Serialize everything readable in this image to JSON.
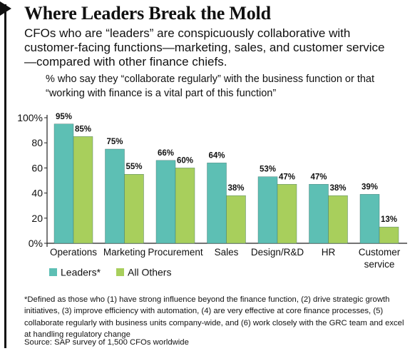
{
  "title": "Where Leaders Break the Mold",
  "subtitle": "CFOs who are “leaders” are conspicuously collaborative with customer-facing functions—marketing, sales, and customer service—compared with other finance chiefs.",
  "note": "% who say they “collaborate regularly” with the business function or that “working with finance is a vital part of this function”",
  "footnote": "*Defined as those who (1) have strong influence beyond the finance function, (2) drive strategic growth initiatives, (3) improve efficiency with automation, (4) are very effective at core finance processes, (5) collaborate regularly with business units company-wide, and (6) work closely with the GRC team and excel at handling regulatory change",
  "source": "Source: SAP survey of 1,500 CFOs worldwide",
  "chart_data": {
    "type": "bar",
    "categories": [
      "Operations",
      "Marketing",
      "Procurement",
      "Sales",
      "Design/R&D",
      "HR",
      "Customer service"
    ],
    "series": [
      {
        "name": "Leaders*",
        "color": "#5dbfb4",
        "values": [
          95,
          75,
          66,
          64,
          53,
          47,
          39
        ]
      },
      {
        "name": "All Others",
        "color": "#a8cf5c",
        "values": [
          85,
          55,
          60,
          38,
          47,
          38,
          13
        ]
      }
    ],
    "value_labels": {
      "Leaders*": [
        "95%",
        "75%",
        "66%",
        "64%",
        "53%",
        "47%",
        "39%"
      ],
      "All Others": [
        "85%",
        "55%",
        "60%",
        "38%",
        "47%",
        "38%",
        "13%"
      ]
    },
    "yticks": [
      "0%",
      "20",
      "40",
      "60",
      "80",
      "100%"
    ],
    "ylim": [
      0,
      100
    ],
    "grid": false,
    "legend": "bottom-left"
  }
}
